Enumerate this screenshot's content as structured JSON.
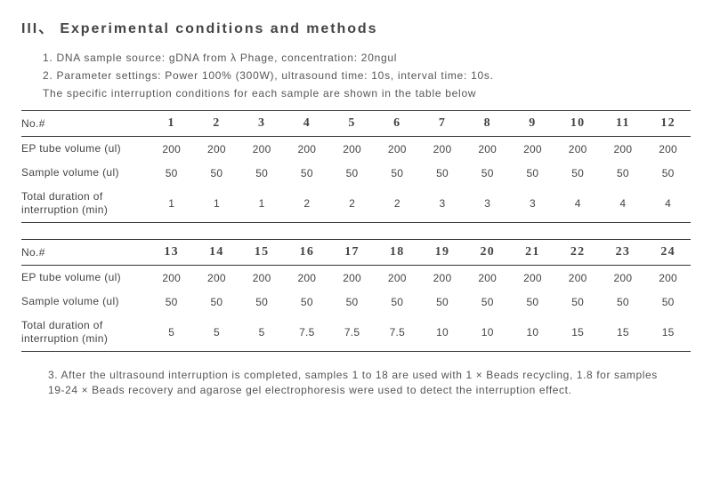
{
  "heading": "III、 Experimental conditions and methods",
  "intro": {
    "line1": "1. DNA sample source: gDNA from λ Phage, concentration: 20ngul",
    "line2": "2. Parameter settings: Power 100% (300W), ultrasound time: 10s, interval time: 10s.",
    "line3": "The specific interruption conditions for each sample are shown in the table below"
  },
  "row_labels": {
    "no": "No.#",
    "ep": "EP tube volume (ul)",
    "sv": "Sample volume (ul)",
    "dur": "Total duration of interruption (min)"
  },
  "table1": {
    "cols": [
      "1",
      "2",
      "3",
      "4",
      "5",
      "6",
      "7",
      "8",
      "9",
      "10",
      "11",
      "12"
    ],
    "ep": [
      "200",
      "200",
      "200",
      "200",
      "200",
      "200",
      "200",
      "200",
      "200",
      "200",
      "200",
      "200"
    ],
    "sv": [
      "50",
      "50",
      "50",
      "50",
      "50",
      "50",
      "50",
      "50",
      "50",
      "50",
      "50",
      "50"
    ],
    "dur": [
      "1",
      "1",
      "1",
      "2",
      "2",
      "2",
      "3",
      "3",
      "3",
      "4",
      "4",
      "4"
    ]
  },
  "table2": {
    "cols": [
      "13",
      "14",
      "15",
      "16",
      "17",
      "18",
      "19",
      "20",
      "21",
      "22",
      "23",
      "24"
    ],
    "ep": [
      "200",
      "200",
      "200",
      "200",
      "200",
      "200",
      "200",
      "200",
      "200",
      "200",
      "200",
      "200"
    ],
    "sv": [
      "50",
      "50",
      "50",
      "50",
      "50",
      "50",
      "50",
      "50",
      "50",
      "50",
      "50",
      "50"
    ],
    "dur": [
      "5",
      "5",
      "5",
      "7.5",
      "7.5",
      "7.5",
      "10",
      "10",
      "10",
      "15",
      "15",
      "15"
    ]
  },
  "footnote": "3. After the ultrasound interruption is completed, samples 1 to 18 are used with 1 × Beads recycling, 1.8 for samples 19-24 ×  Beads recovery and agarose gel electrophoresis were used to detect the interruption effect."
}
